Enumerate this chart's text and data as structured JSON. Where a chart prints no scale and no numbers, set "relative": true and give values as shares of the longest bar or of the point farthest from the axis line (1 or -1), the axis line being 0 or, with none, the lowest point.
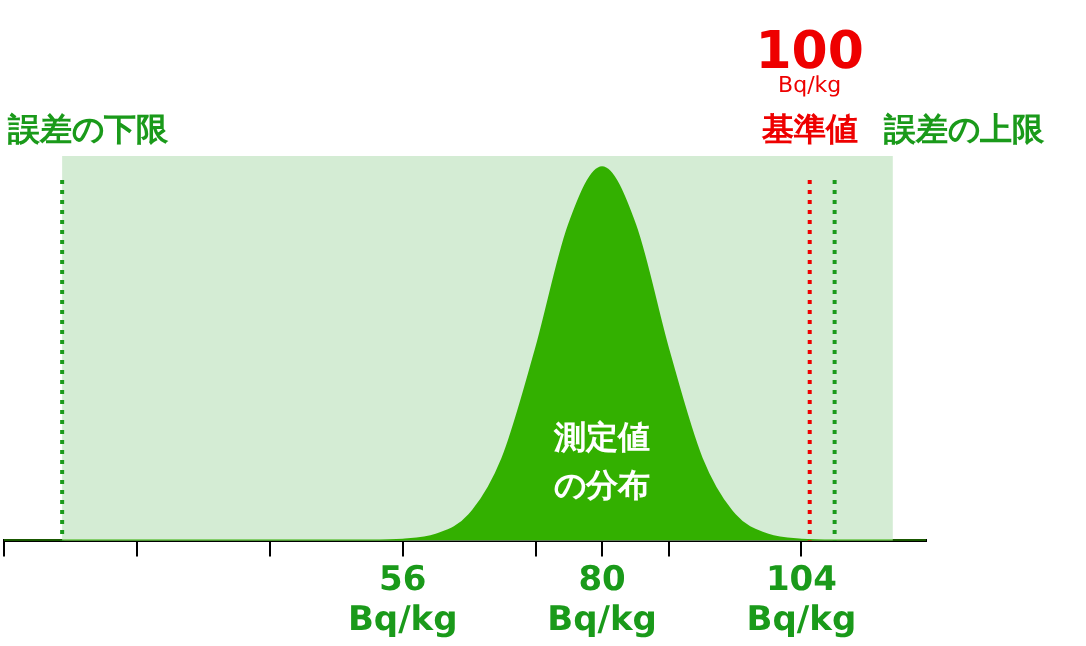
{
  "chart_data": {
    "type": "area",
    "relative": true,
    "x": [
      8,
      52,
      56,
      60,
      64,
      68,
      72,
      76,
      80,
      84,
      88,
      92,
      96,
      100,
      104,
      108,
      119
    ],
    "series": [
      {
        "color": "#33b000",
        "values": [
          0,
          0,
          0.002,
          0.015,
          0.068,
          0.22,
          0.51,
          0.845,
          1,
          0.845,
          0.51,
          0.22,
          0.068,
          0.015,
          0.002,
          0,
          0
        ]
      }
    ],
    "xlim": [
      8,
      119
    ],
    "xticks": [
      {
        "value": 8,
        "label": null
      },
      {
        "value": 24,
        "label": null
      },
      {
        "value": 40,
        "label": null
      },
      {
        "value": 56,
        "label": "56\nBq/kg"
      },
      {
        "value": 72,
        "label": null
      },
      {
        "value": 80,
        "label": "80\nBq/kg"
      },
      {
        "value": 88,
        "label": null
      },
      {
        "value": 104,
        "label": "104\nBq/kg"
      }
    ],
    "bands": [
      {
        "axis": "x",
        "from": 15,
        "to": 115,
        "color": "#d4ecd4"
      }
    ],
    "ref_lines": [
      {
        "axis": "x",
        "value": 15,
        "label": "誤差の下限",
        "color": "#1a9a1a",
        "line_style": "dotted"
      },
      {
        "axis": "x",
        "value": 105,
        "label": "100\nBq/kg\n基準値",
        "color": "#ee0000",
        "line_style": "dotted"
      },
      {
        "axis": "x",
        "value": 108,
        "label": "誤差の上限",
        "color": "#1a9a1a",
        "line_style": "dotted"
      }
    ],
    "annotations": [
      "測定値の分布"
    ],
    "grid": false,
    "legend": false
  }
}
